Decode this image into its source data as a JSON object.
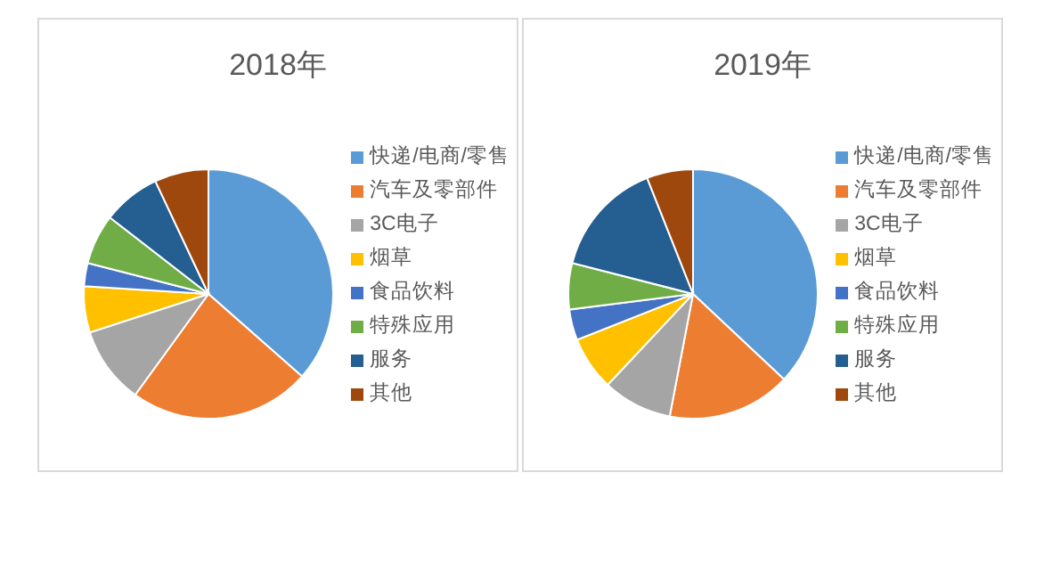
{
  "chart_data": [
    {
      "type": "pie",
      "title": "2018年",
      "legend": "right",
      "categories": [
        "快递/电商/零售",
        "汽车及零部件",
        "3C电子",
        "烟草",
        "食品饮料",
        "特殊应用",
        "服务",
        "其他"
      ],
      "values": [
        36.5,
        23.5,
        10,
        6,
        3,
        6.5,
        7.5,
        7
      ],
      "colors": [
        "#5b9bd5",
        "#ed7d31",
        "#a5a5a5",
        "#ffc000",
        "#4472c4",
        "#70ad47",
        "#255e91",
        "#9e480e"
      ]
    },
    {
      "type": "pie",
      "title": "2019年",
      "legend": "right",
      "categories": [
        "快递/电商/零售",
        "汽车及零部件",
        "3C电子",
        "烟草",
        "食品饮料",
        "特殊应用",
        "服务",
        "其他"
      ],
      "values": [
        37,
        16,
        9,
        7,
        4,
        6,
        15,
        6
      ],
      "colors": [
        "#5b9bd5",
        "#ed7d31",
        "#a5a5a5",
        "#ffc000",
        "#4472c4",
        "#70ad47",
        "#255e91",
        "#9e480e"
      ]
    }
  ]
}
